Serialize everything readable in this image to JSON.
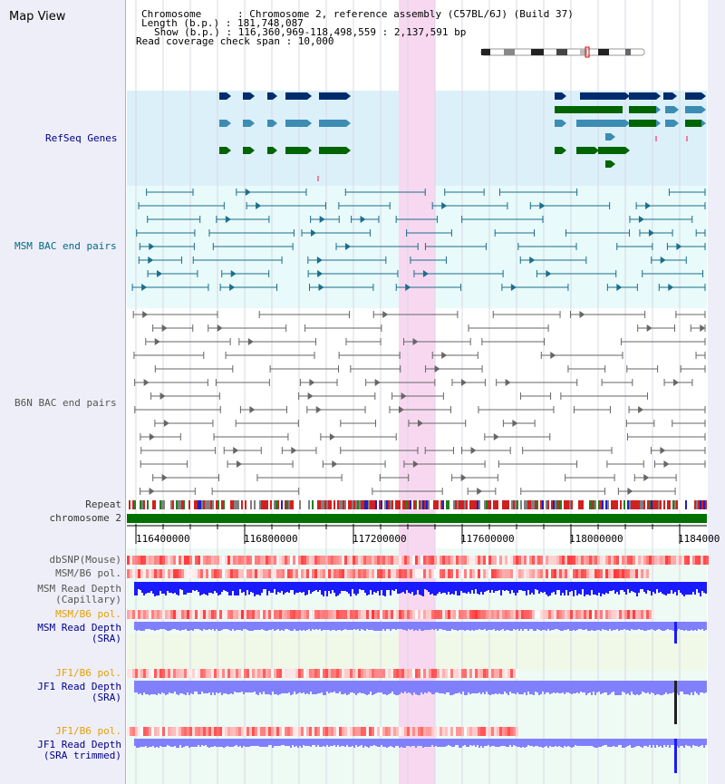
{
  "title": "Map View",
  "info": {
    "chromosome_line": "Chromosome      : Chromosome 2, reference assembly (C57BL/6J) (Build 37)",
    "length_line": "Length (b.p.) : 181,748,087",
    "show_line": "Show (b.p.) : 116,360,969-118,498,559 : 2,137,591 bp",
    "coverage_line": "Read coverage check span : 10,000"
  },
  "tracks": {
    "refseq": "RefSeq Genes",
    "msm_bac": "MSM BAC end pairs",
    "b6n_bac": "B6N BAC end pairs",
    "repeat": "Repeat",
    "chromosome": "chromosome 2",
    "dbsnp": "dbSNP(Mouse)",
    "msm_b6_pol_1": "MSM/B6 pol.",
    "msm_read_depth_cap_1": "MSM Read Depth",
    "msm_read_depth_cap_2": "(Capillary)",
    "msm_b6_pol_2": "MSM/B6 pol.",
    "msm_read_depth_sra_1": "MSM Read Depth",
    "msm_read_depth_sra_2": "(SRA)",
    "jf1_b6_pol_1": "JF1/B6 pol.",
    "jf1_read_depth_sra_1": "JF1 Read Depth",
    "jf1_read_depth_sra_2": "(SRA)",
    "jf1_b6_pol_2": "JF1/B6 pol.",
    "jf1_read_depth_trim_1": "JF1 Read Depth",
    "jf1_read_depth_trim_2": "(SRA trimmed)"
  },
  "axis": {
    "ticks": [
      "116400000",
      "116800000",
      "117200000",
      "117600000",
      "118000000",
      "1184000"
    ]
  },
  "colors": {
    "refseq_bg": "#dcf0fa",
    "bac_bg": "#e8fafa",
    "highlight": "#f8d8f0",
    "gene_dark": "#002c6e",
    "gene_mid": "#3c8cb4",
    "gene_green": "#006400",
    "msm_bac": "#1a6e8c",
    "b6n_bac": "#666666",
    "chromosome_bar": "#007000",
    "depth_blue": "#1a1aff",
    "depth_light": "#8080ff",
    "pol_red": "#e04040"
  }
}
